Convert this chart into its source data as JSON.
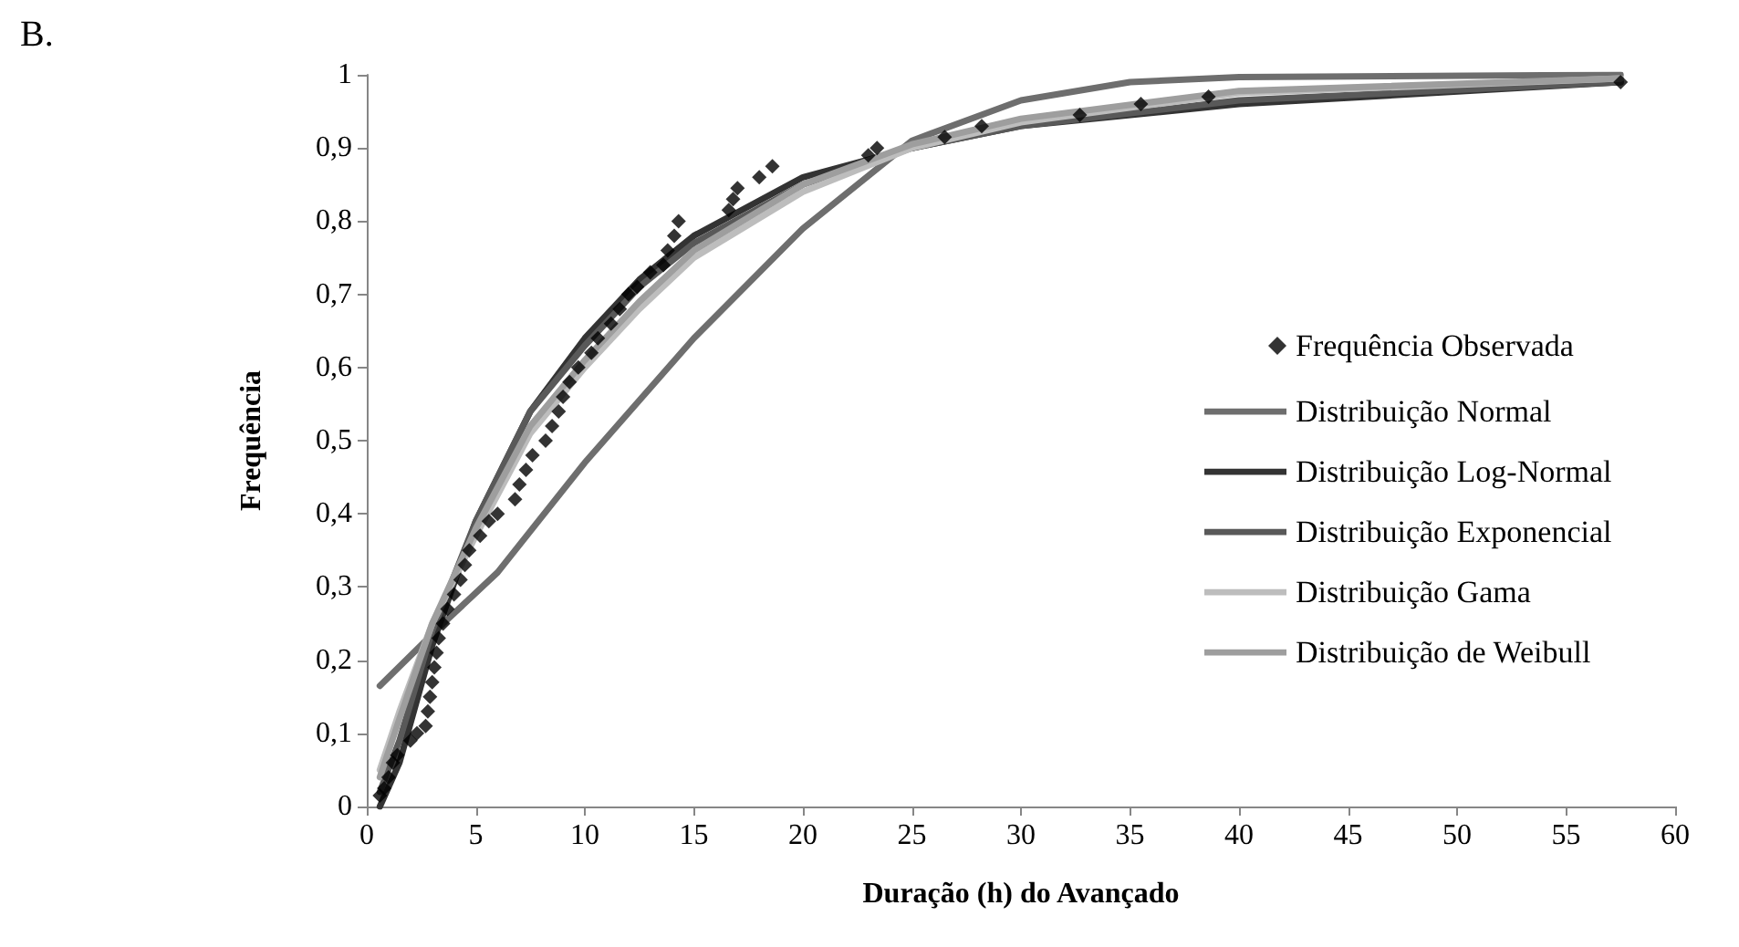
{
  "chart_data": {
    "type": "line",
    "xlabel": "Duração (h) do Avançado",
    "ylabel": "Frequência",
    "annotations": [
      "B."
    ],
    "xlim": [
      0,
      60
    ],
    "xticks": [
      0,
      5,
      10,
      15,
      20,
      25,
      30,
      35,
      40,
      45,
      50,
      55,
      60
    ],
    "ylim": [
      0,
      1
    ],
    "yticks": [
      0,
      {
        "value": 0.1,
        "label": "0,1"
      },
      {
        "value": 0.2,
        "label": "0,2"
      },
      {
        "value": 0.3,
        "label": "0,3"
      },
      {
        "value": 0.4,
        "label": "0,4"
      },
      {
        "value": 0.5,
        "label": "0,5"
      },
      {
        "value": 0.6,
        "label": "0,6"
      },
      {
        "value": 0.7,
        "label": "0,7"
      },
      {
        "value": 0.8,
        "label": "0,8"
      },
      {
        "value": 0.9,
        "label": "0,9"
      },
      1
    ],
    "grid": false,
    "legend": "right",
    "line_style": "solid",
    "series": [
      {
        "name": "Frequência Observada",
        "type": "scatter",
        "marker": "diamond",
        "color": "#000000",
        "x": [
          0.6,
          0.8,
          1.0,
          1.2,
          1.4,
          2.0,
          2.3,
          2.7,
          2.8,
          2.9,
          3.0,
          3.1,
          3.2,
          3.3,
          3.5,
          3.7,
          4.0,
          4.3,
          4.5,
          4.7,
          5.2,
          5.6,
          6.0,
          6.8,
          7.0,
          7.3,
          7.6,
          8.2,
          8.5,
          8.8,
          9.0,
          9.3,
          9.7,
          10.3,
          10.6,
          11.2,
          11.6,
          12.0,
          12.4,
          13.0,
          13.6,
          13.8,
          14.1,
          14.3,
          16.6,
          16.8,
          17.0,
          18.0,
          18.6,
          23.0,
          23.4,
          26.5,
          28.2,
          32.7,
          35.5,
          38.6,
          57.5
        ],
        "values": [
          0.015,
          0.025,
          0.04,
          0.06,
          0.07,
          0.09,
          0.1,
          0.11,
          0.13,
          0.15,
          0.17,
          0.19,
          0.21,
          0.23,
          0.25,
          0.27,
          0.29,
          0.31,
          0.33,
          0.35,
          0.37,
          0.39,
          0.4,
          0.42,
          0.44,
          0.46,
          0.48,
          0.5,
          0.52,
          0.54,
          0.56,
          0.58,
          0.6,
          0.62,
          0.64,
          0.66,
          0.68,
          0.7,
          0.71,
          0.73,
          0.74,
          0.76,
          0.78,
          0.8,
          0.815,
          0.83,
          0.845,
          0.86,
          0.875,
          0.89,
          0.9,
          0.915,
          0.93,
          0.945,
          0.96,
          0.97,
          0.99
        ]
      },
      {
        "name": "Distribuição Normal",
        "marker": "none",
        "color": "#6e6e6e",
        "x": [
          0.6,
          3.5,
          6,
          10,
          15,
          20,
          25,
          30,
          35,
          40,
          57.5
        ],
        "values": [
          0.165,
          0.25,
          0.32,
          0.47,
          0.64,
          0.79,
          0.91,
          0.965,
          0.99,
          0.997,
          1.0
        ]
      },
      {
        "name": "Distribuição Log-Normal",
        "marker": "none",
        "color": "#333333",
        "x": [
          0.6,
          1.5,
          3,
          5,
          7.5,
          10,
          12.5,
          15,
          20,
          25,
          30,
          40,
          57.5
        ],
        "values": [
          0.0,
          0.06,
          0.22,
          0.39,
          0.54,
          0.64,
          0.72,
          0.78,
          0.86,
          0.9,
          0.93,
          0.96,
          0.99
        ]
      },
      {
        "name": "Distribuição Exponencial",
        "marker": "none",
        "color": "#595959",
        "x": [
          0.6,
          1.5,
          3,
          5,
          7.5,
          10,
          12.5,
          15,
          20,
          25,
          30,
          40,
          57.5
        ],
        "values": [
          0.02,
          0.09,
          0.24,
          0.39,
          0.54,
          0.63,
          0.71,
          0.77,
          0.85,
          0.9,
          0.93,
          0.965,
          0.99
        ]
      },
      {
        "name": "Distribuição Gama",
        "marker": "none",
        "color": "#bdbdbd",
        "x": [
          0.6,
          1.5,
          3,
          5,
          7.5,
          10,
          12.5,
          15,
          20,
          25,
          30,
          40,
          57.5
        ],
        "values": [
          0.05,
          0.13,
          0.25,
          0.37,
          0.51,
          0.6,
          0.68,
          0.75,
          0.84,
          0.9,
          0.935,
          0.975,
          0.995
        ]
      },
      {
        "name": "Distribuição de Weibull",
        "marker": "none",
        "color": "#9e9e9e",
        "x": [
          0.6,
          1.5,
          3,
          5,
          7.5,
          10,
          12.5,
          15,
          20,
          25,
          30,
          40,
          57.5
        ],
        "values": [
          0.04,
          0.12,
          0.25,
          0.38,
          0.52,
          0.61,
          0.69,
          0.76,
          0.85,
          0.905,
          0.94,
          0.978,
          0.995
        ]
      }
    ]
  }
}
